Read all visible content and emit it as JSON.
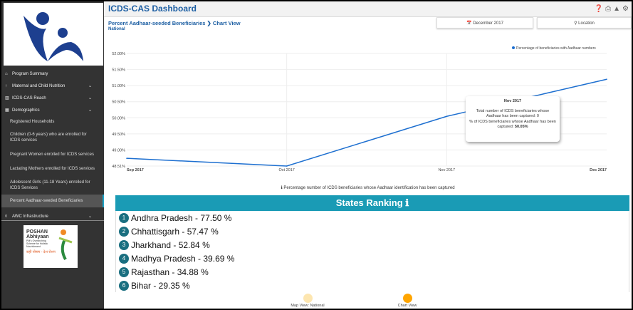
{
  "sidebar": {
    "items": [
      {
        "label": "Program Summary",
        "icon": "home-icon",
        "chev": ""
      },
      {
        "label": "Maternal and Child Nutrition",
        "icon": "nutrition-icon",
        "chev": "⌄"
      },
      {
        "label": "ICDS-CAS Reach",
        "icon": "bar-chart-icon",
        "chev": "⌄"
      },
      {
        "label": "Demographics",
        "icon": "demographics-icon",
        "chev": "⌄"
      }
    ],
    "subitems": [
      "Registered Households",
      "Children (0-6 years) who are enrolled for ICDS services",
      "Pregnant Women enrolled for ICDS services",
      "Lactating Mothers enrolled for ICDS services",
      "Adolescent Girls (11-18 Years) enrolled for ICDS Services",
      "Percent Aadhaar-seeded Beneficiaries"
    ],
    "awc": {
      "label": "AWC Infrastructure",
      "chev": "⌄"
    },
    "poshan": {
      "line1": "POSHAN",
      "line2": "Abhiyaan",
      "line3": "PM's Overarching Scheme for Holistic Nourishment",
      "line4": "सही पोषण - देश रोशन"
    }
  },
  "header": {
    "title": "ICDS-CAS Dashboard"
  },
  "breadcrumb": {
    "text": "Percent Aadhaar-seeded Beneficiaries ❯ Chart View",
    "sub": "National"
  },
  "filters": {
    "date": "📅 December 2017",
    "location": "⚲ Location"
  },
  "chart_data": {
    "type": "line",
    "categories": [
      "Sep 2017",
      "Oct 2017",
      "Nov 2017",
      "Dec 2017"
    ],
    "series": [
      {
        "name": "Percentage of beneficiaries with Aadhaar numbers",
        "values": [
          48.75,
          48.51,
          50.05,
          51.2
        ],
        "color": "#1d6fd0"
      }
    ],
    "yticks": [
      "52.00%",
      "51.50%",
      "51.00%",
      "50.50%",
      "50.00%",
      "49.50%",
      "49.00%",
      "48.51%"
    ],
    "ylim": [
      48.51,
      52.0
    ]
  },
  "tooltip": {
    "title": "Nov 2017",
    "line1": "Total number of ICDS beneficiaries whose Aadhaar has been captured: 0",
    "line2": "% of ICDS beneficiaries whose Aadhaar has been captured: ",
    "value": "50.05%"
  },
  "caption": "ℹ Percentage number of ICDS beneficiaries whose Aadhaar identification has been captured",
  "ranking": {
    "title": "States Ranking ℹ",
    "rows": [
      {
        "n": "1",
        "text": "Andhra Pradesh - 77.50 %"
      },
      {
        "n": "2",
        "text": "Chhattisgarh - 57.47 %"
      },
      {
        "n": "3",
        "text": "Jharkhand - 52.84 %"
      },
      {
        "n": "4",
        "text": "Madhya Pradesh - 39.69 %"
      },
      {
        "n": "5",
        "text": "Rajasthan - 34.88 %"
      },
      {
        "n": "6",
        "text": "Bihar - 29.35 %"
      }
    ]
  },
  "views": {
    "map": "Map View: National",
    "chart": "Chart View"
  }
}
